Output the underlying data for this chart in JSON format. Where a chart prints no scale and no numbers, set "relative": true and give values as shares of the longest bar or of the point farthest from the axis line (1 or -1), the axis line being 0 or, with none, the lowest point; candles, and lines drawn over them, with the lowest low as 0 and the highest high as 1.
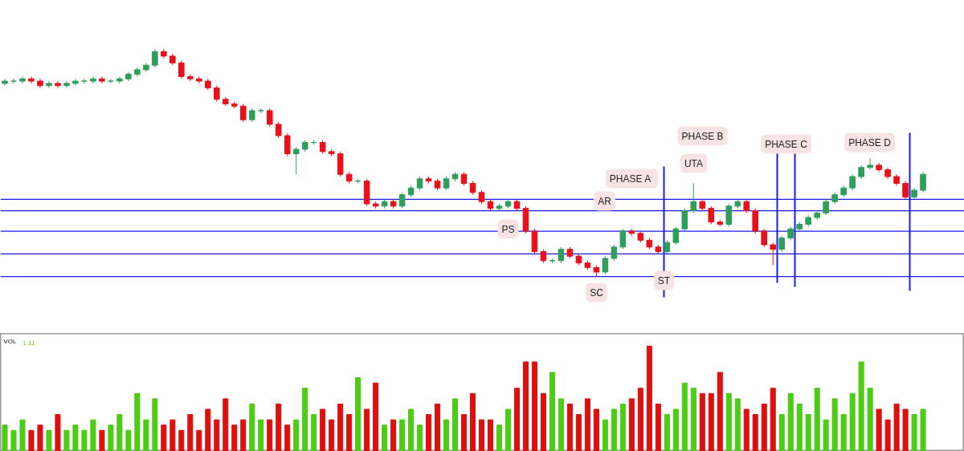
{
  "chart_data": [
    {
      "type": "candlestick",
      "relative": true,
      "categories": [
        null,
        null,
        null,
        null,
        null,
        null,
        null,
        null,
        null,
        null,
        null,
        null,
        null,
        null,
        null,
        null,
        null,
        null,
        null,
        null,
        null,
        null,
        null,
        null,
        null,
        null,
        null,
        null,
        null,
        null,
        null,
        null,
        null,
        null,
        null,
        null,
        null,
        null,
        null,
        null,
        null,
        null,
        null,
        null,
        null,
        null,
        null,
        null,
        null,
        null,
        null,
        null,
        null,
        null,
        null,
        null,
        null,
        null,
        null,
        null,
        null,
        null,
        null,
        null,
        null,
        null,
        null,
        null,
        null,
        null,
        null,
        null,
        null,
        null,
        null,
        null,
        null,
        null,
        null,
        null,
        null,
        null,
        null,
        null,
        null,
        null,
        null,
        null,
        null,
        null,
        null,
        null,
        null,
        null,
        null,
        null,
        null,
        null,
        null,
        null,
        null,
        null,
        null,
        null,
        null
      ],
      "ohlc": [
        [
          0.85,
          0.87,
          0.84,
          0.86
        ],
        [
          0.86,
          0.87,
          0.85,
          0.86
        ],
        [
          0.86,
          0.88,
          0.85,
          0.87
        ],
        [
          0.87,
          0.88,
          0.85,
          0.86
        ],
        [
          0.86,
          0.87,
          0.83,
          0.84
        ],
        [
          0.84,
          0.86,
          0.83,
          0.85
        ],
        [
          0.85,
          0.86,
          0.83,
          0.84
        ],
        [
          0.84,
          0.86,
          0.83,
          0.85
        ],
        [
          0.85,
          0.87,
          0.84,
          0.86
        ],
        [
          0.86,
          0.87,
          0.85,
          0.86
        ],
        [
          0.86,
          0.88,
          0.85,
          0.87
        ],
        [
          0.87,
          0.88,
          0.85,
          0.86
        ],
        [
          0.86,
          0.87,
          0.85,
          0.86
        ],
        [
          0.86,
          0.88,
          0.85,
          0.87
        ],
        [
          0.87,
          0.9,
          0.86,
          0.89
        ],
        [
          0.89,
          0.92,
          0.88,
          0.91
        ],
        [
          0.91,
          0.94,
          0.9,
          0.93
        ],
        [
          0.93,
          1.0,
          0.92,
          0.99
        ],
        [
          0.99,
          1.0,
          0.96,
          0.97
        ],
        [
          0.97,
          0.98,
          0.93,
          0.94
        ],
        [
          0.94,
          0.95,
          0.87,
          0.88
        ],
        [
          0.88,
          0.89,
          0.86,
          0.87
        ],
        [
          0.87,
          0.88,
          0.85,
          0.86
        ],
        [
          0.86,
          0.87,
          0.82,
          0.83
        ],
        [
          0.83,
          0.84,
          0.77,
          0.78
        ],
        [
          0.78,
          0.79,
          0.75,
          0.76
        ],
        [
          0.76,
          0.77,
          0.74,
          0.75
        ],
        [
          0.75,
          0.76,
          0.68,
          0.69
        ],
        [
          0.69,
          0.74,
          0.68,
          0.73
        ],
        [
          0.73,
          0.74,
          0.72,
          0.73
        ],
        [
          0.73,
          0.74,
          0.66,
          0.67
        ],
        [
          0.67,
          0.68,
          0.61,
          0.62
        ],
        [
          0.62,
          0.63,
          0.53,
          0.54
        ],
        [
          0.54,
          0.57,
          0.45,
          0.56
        ],
        [
          0.56,
          0.6,
          0.55,
          0.59
        ],
        [
          0.59,
          0.6,
          0.58,
          0.59
        ],
        [
          0.59,
          0.6,
          0.54,
          0.55
        ],
        [
          0.55,
          0.56,
          0.53,
          0.54
        ],
        [
          0.54,
          0.55,
          0.44,
          0.45
        ],
        [
          0.45,
          0.46,
          0.41,
          0.42
        ],
        [
          0.42,
          0.43,
          0.41,
          0.42
        ],
        [
          0.42,
          0.43,
          0.31,
          0.32
        ],
        [
          0.32,
          0.33,
          0.3,
          0.31
        ],
        [
          0.31,
          0.34,
          0.3,
          0.33
        ],
        [
          0.33,
          0.34,
          0.3,
          0.31
        ],
        [
          0.31,
          0.37,
          0.3,
          0.36
        ],
        [
          0.36,
          0.4,
          0.35,
          0.39
        ],
        [
          0.39,
          0.44,
          0.38,
          0.43
        ],
        [
          0.43,
          0.44,
          0.41,
          0.42
        ],
        [
          0.42,
          0.43,
          0.38,
          0.39
        ],
        [
          0.39,
          0.44,
          0.38,
          0.43
        ],
        [
          0.43,
          0.46,
          0.42,
          0.45
        ],
        [
          0.45,
          0.46,
          0.4,
          0.41
        ],
        [
          0.41,
          0.42,
          0.36,
          0.37
        ],
        [
          0.37,
          0.38,
          0.32,
          0.33
        ],
        [
          0.33,
          0.34,
          0.29,
          0.3
        ],
        [
          0.3,
          0.32,
          0.29,
          0.31
        ],
        [
          0.31,
          0.34,
          0.3,
          0.33
        ],
        [
          0.33,
          0.34,
          0.29,
          0.3
        ],
        [
          0.3,
          0.31,
          0.19,
          0.2
        ],
        [
          0.2,
          0.21,
          0.1,
          0.11
        ],
        [
          0.11,
          0.12,
          0.06,
          0.07
        ],
        [
          0.07,
          0.08,
          0.06,
          0.07
        ],
        [
          0.07,
          0.13,
          0.06,
          0.12
        ],
        [
          0.12,
          0.13,
          0.08,
          0.09
        ],
        [
          0.09,
          0.1,
          0.05,
          0.06
        ],
        [
          0.06,
          0.07,
          0.03,
          0.04
        ],
        [
          0.04,
          0.05,
          0.0,
          0.02
        ],
        [
          0.02,
          0.09,
          0.01,
          0.08
        ],
        [
          0.08,
          0.14,
          0.07,
          0.13
        ],
        [
          0.13,
          0.21,
          0.12,
          0.2
        ],
        [
          0.2,
          0.21,
          0.18,
          0.19
        ],
        [
          0.19,
          0.2,
          0.15,
          0.16
        ],
        [
          0.16,
          0.17,
          0.12,
          0.13
        ],
        [
          0.13,
          0.14,
          0.1,
          0.11
        ],
        [
          0.11,
          0.16,
          0.1,
          0.15
        ],
        [
          0.15,
          0.22,
          0.14,
          0.21
        ],
        [
          0.21,
          0.3,
          0.2,
          0.29
        ],
        [
          0.29,
          0.41,
          0.28,
          0.33
        ],
        [
          0.33,
          0.34,
          0.29,
          0.3
        ],
        [
          0.3,
          0.31,
          0.23,
          0.24
        ],
        [
          0.24,
          0.25,
          0.22,
          0.23
        ],
        [
          0.23,
          0.32,
          0.22,
          0.31
        ],
        [
          0.31,
          0.34,
          0.3,
          0.33
        ],
        [
          0.33,
          0.34,
          0.28,
          0.29
        ],
        [
          0.29,
          0.3,
          0.19,
          0.2
        ],
        [
          0.2,
          0.21,
          0.13,
          0.14
        ],
        [
          0.14,
          0.15,
          0.05,
          0.12
        ],
        [
          0.12,
          0.18,
          0.11,
          0.17
        ],
        [
          0.17,
          0.22,
          0.16,
          0.21
        ],
        [
          0.21,
          0.24,
          0.2,
          0.23
        ],
        [
          0.23,
          0.27,
          0.22,
          0.26
        ],
        [
          0.26,
          0.29,
          0.25,
          0.28
        ],
        [
          0.28,
          0.34,
          0.27,
          0.33
        ],
        [
          0.33,
          0.37,
          0.32,
          0.36
        ],
        [
          0.36,
          0.4,
          0.35,
          0.39
        ],
        [
          0.39,
          0.45,
          0.38,
          0.44
        ],
        [
          0.44,
          0.49,
          0.43,
          0.48
        ],
        [
          0.48,
          0.52,
          0.47,
          0.49
        ],
        [
          0.49,
          0.5,
          0.46,
          0.47
        ],
        [
          0.47,
          0.48,
          0.43,
          0.44
        ],
        [
          0.44,
          0.45,
          0.4,
          0.41
        ],
        [
          0.41,
          0.42,
          0.34,
          0.35
        ],
        [
          0.35,
          0.39,
          0.34,
          0.38
        ],
        [
          0.38,
          0.46,
          0.37,
          0.45
        ]
      ],
      "colors": [
        "#2e9e5b",
        "#2e9e5b",
        "#2e9e5b",
        "#e8101a",
        "#e8101a",
        "#2e9e5b",
        "#e8101a",
        "#2e9e5b",
        "#2e9e5b",
        "#2e9e5b",
        "#2e9e5b",
        "#e8101a",
        "#2e9e5b",
        "#2e9e5b",
        "#2e9e5b",
        "#2e9e5b",
        "#2e9e5b",
        "#2e9e5b",
        "#e8101a",
        "#e8101a",
        "#e8101a",
        "#e8101a",
        "#e8101a",
        "#e8101a",
        "#e8101a",
        "#e8101a",
        "#e8101a",
        "#e8101a",
        "#2e9e5b",
        "#2e9e5b",
        "#e8101a",
        "#e8101a",
        "#e8101a",
        "#2e9e5b",
        "#2e9e5b",
        "#2e9e5b",
        "#e8101a",
        "#e8101a",
        "#e8101a",
        "#e8101a",
        "#2e9e5b",
        "#e8101a",
        "#e8101a",
        "#2e9e5b",
        "#e8101a",
        "#2e9e5b",
        "#2e9e5b",
        "#2e9e5b",
        "#e8101a",
        "#e8101a",
        "#2e9e5b",
        "#2e9e5b",
        "#e8101a",
        "#e8101a",
        "#e8101a",
        "#e8101a",
        "#2e9e5b",
        "#2e9e5b",
        "#e8101a",
        "#e8101a",
        "#e8101a",
        "#e8101a",
        "#2e9e5b",
        "#2e9e5b",
        "#e8101a",
        "#e8101a",
        "#e8101a",
        "#e8101a",
        "#2e9e5b",
        "#2e9e5b",
        "#2e9e5b",
        "#e8101a",
        "#e8101a",
        "#e8101a",
        "#e8101a",
        "#2e9e5b",
        "#2e9e5b",
        "#2e9e5b",
        "#2e9e5b",
        "#e8101a",
        "#e8101a",
        "#e8101a",
        "#2e9e5b",
        "#2e9e5b",
        "#e8101a",
        "#e8101a",
        "#e8101a",
        "#e8101a",
        "#2e9e5b",
        "#2e9e5b",
        "#2e9e5b",
        "#2e9e5b",
        "#2e9e5b",
        "#2e9e5b",
        "#2e9e5b",
        "#2e9e5b",
        "#2e9e5b",
        "#2e9e5b",
        "#2e9e5b",
        "#e8101a",
        "#e8101a",
        "#e8101a",
        "#e8101a",
        "#2e9e5b",
        "#2e9e5b"
      ],
      "annotations": [
        "PS",
        "SC",
        "AR",
        "ST",
        "UTA",
        "PHASE  A",
        "PHASE B",
        "PHASE C",
        "PHASE D"
      ],
      "ref_lines": [
        {
          "axis": "y",
          "value": 0.34,
          "color": "#1a1aee"
        },
        {
          "axis": "y",
          "value": 0.29,
          "color": "#1a1aee"
        },
        {
          "axis": "y",
          "value": 0.2,
          "color": "#1a1aee"
        },
        {
          "axis": "y",
          "value": 0.1,
          "color": "#1a1aee"
        },
        {
          "axis": "y",
          "value": 0.0,
          "color": "#1a1aee"
        }
      ]
    },
    {
      "type": "bar",
      "relative": true,
      "title": "VOL",
      "annotations": [
        "1.11"
      ],
      "categories": [
        null,
        null,
        null,
        null,
        null,
        null,
        null,
        null,
        null,
        null,
        null,
        null,
        null,
        null,
        null,
        null,
        null,
        null,
        null,
        null,
        null,
        null,
        null,
        null,
        null,
        null,
        null,
        null,
        null,
        null,
        null,
        null,
        null,
        null,
        null,
        null,
        null,
        null,
        null,
        null,
        null,
        null,
        null,
        null,
        null,
        null,
        null,
        null,
        null,
        null,
        null,
        null,
        null,
        null,
        null,
        null,
        null,
        null,
        null,
        null,
        null,
        null,
        null,
        null,
        null,
        null,
        null,
        null,
        null,
        null,
        null,
        null,
        null,
        null,
        null,
        null,
        null,
        null,
        null,
        null,
        null,
        null,
        null,
        null,
        null,
        null,
        null,
        null,
        null,
        null,
        null,
        null,
        null,
        null,
        null,
        null,
        null,
        null,
        null,
        null,
        null,
        null,
        null,
        null,
        null
      ],
      "values": [
        0.25,
        0.2,
        0.3,
        0.2,
        0.25,
        0.2,
        0.35,
        0.2,
        0.25,
        0.2,
        0.3,
        0.2,
        0.25,
        0.35,
        0.2,
        0.55,
        0.3,
        0.5,
        0.25,
        0.3,
        0.2,
        0.35,
        0.2,
        0.4,
        0.3,
        0.5,
        0.25,
        0.3,
        0.45,
        0.3,
        0.3,
        0.45,
        0.25,
        0.3,
        0.6,
        0.35,
        0.4,
        0.3,
        0.45,
        0.35,
        0.7,
        0.4,
        0.65,
        0.25,
        0.3,
        0.3,
        0.4,
        0.25,
        0.35,
        0.45,
        0.3,
        0.5,
        0.35,
        0.55,
        0.3,
        0.3,
        0.25,
        0.4,
        0.6,
        0.85,
        0.85,
        0.55,
        0.75,
        0.5,
        0.45,
        0.35,
        0.5,
        0.4,
        0.3,
        0.4,
        0.45,
        0.5,
        0.6,
        1.0,
        0.45,
        0.35,
        0.4,
        0.65,
        0.6,
        0.55,
        0.55,
        0.75,
        0.55,
        0.5,
        0.4,
        0.35,
        0.45,
        0.6,
        0.35,
        0.55,
        0.45,
        0.35,
        0.6,
        0.3,
        0.5,
        0.35,
        0.55,
        0.85,
        0.6,
        0.4,
        0.3,
        0.45,
        0.4,
        0.35,
        0.4
      ],
      "colors": [
        "#4ccc14",
        "#4ccc14",
        "#4ccc14",
        "#dd1010",
        "#dd1010",
        "#4ccc14",
        "#dd1010",
        "#4ccc14",
        "#4ccc14",
        "#4ccc14",
        "#4ccc14",
        "#dd1010",
        "#4ccc14",
        "#4ccc14",
        "#4ccc14",
        "#4ccc14",
        "#4ccc14",
        "#4ccc14",
        "#dd1010",
        "#dd1010",
        "#dd1010",
        "#dd1010",
        "#dd1010",
        "#dd1010",
        "#dd1010",
        "#dd1010",
        "#dd1010",
        "#dd1010",
        "#4ccc14",
        "#4ccc14",
        "#dd1010",
        "#dd1010",
        "#dd1010",
        "#4ccc14",
        "#4ccc14",
        "#4ccc14",
        "#dd1010",
        "#dd1010",
        "#dd1010",
        "#dd1010",
        "#4ccc14",
        "#dd1010",
        "#dd1010",
        "#4ccc14",
        "#dd1010",
        "#4ccc14",
        "#4ccc14",
        "#4ccc14",
        "#dd1010",
        "#dd1010",
        "#4ccc14",
        "#4ccc14",
        "#dd1010",
        "#dd1010",
        "#dd1010",
        "#dd1010",
        "#4ccc14",
        "#4ccc14",
        "#dd1010",
        "#dd1010",
        "#dd1010",
        "#dd1010",
        "#4ccc14",
        "#4ccc14",
        "#dd1010",
        "#dd1010",
        "#dd1010",
        "#dd1010",
        "#4ccc14",
        "#4ccc14",
        "#4ccc14",
        "#dd1010",
        "#dd1010",
        "#dd1010",
        "#dd1010",
        "#4ccc14",
        "#4ccc14",
        "#4ccc14",
        "#4ccc14",
        "#dd1010",
        "#dd1010",
        "#dd1010",
        "#4ccc14",
        "#4ccc14",
        "#dd1010",
        "#dd1010",
        "#dd1010",
        "#dd1010",
        "#4ccc14",
        "#4ccc14",
        "#4ccc14",
        "#4ccc14",
        "#4ccc14",
        "#4ccc14",
        "#4ccc14",
        "#4ccc14",
        "#4ccc14",
        "#4ccc14",
        "#4ccc14",
        "#dd1010",
        "#dd1010",
        "#dd1010",
        "#dd1010",
        "#4ccc14",
        "#4ccc14"
      ]
    }
  ]
}
